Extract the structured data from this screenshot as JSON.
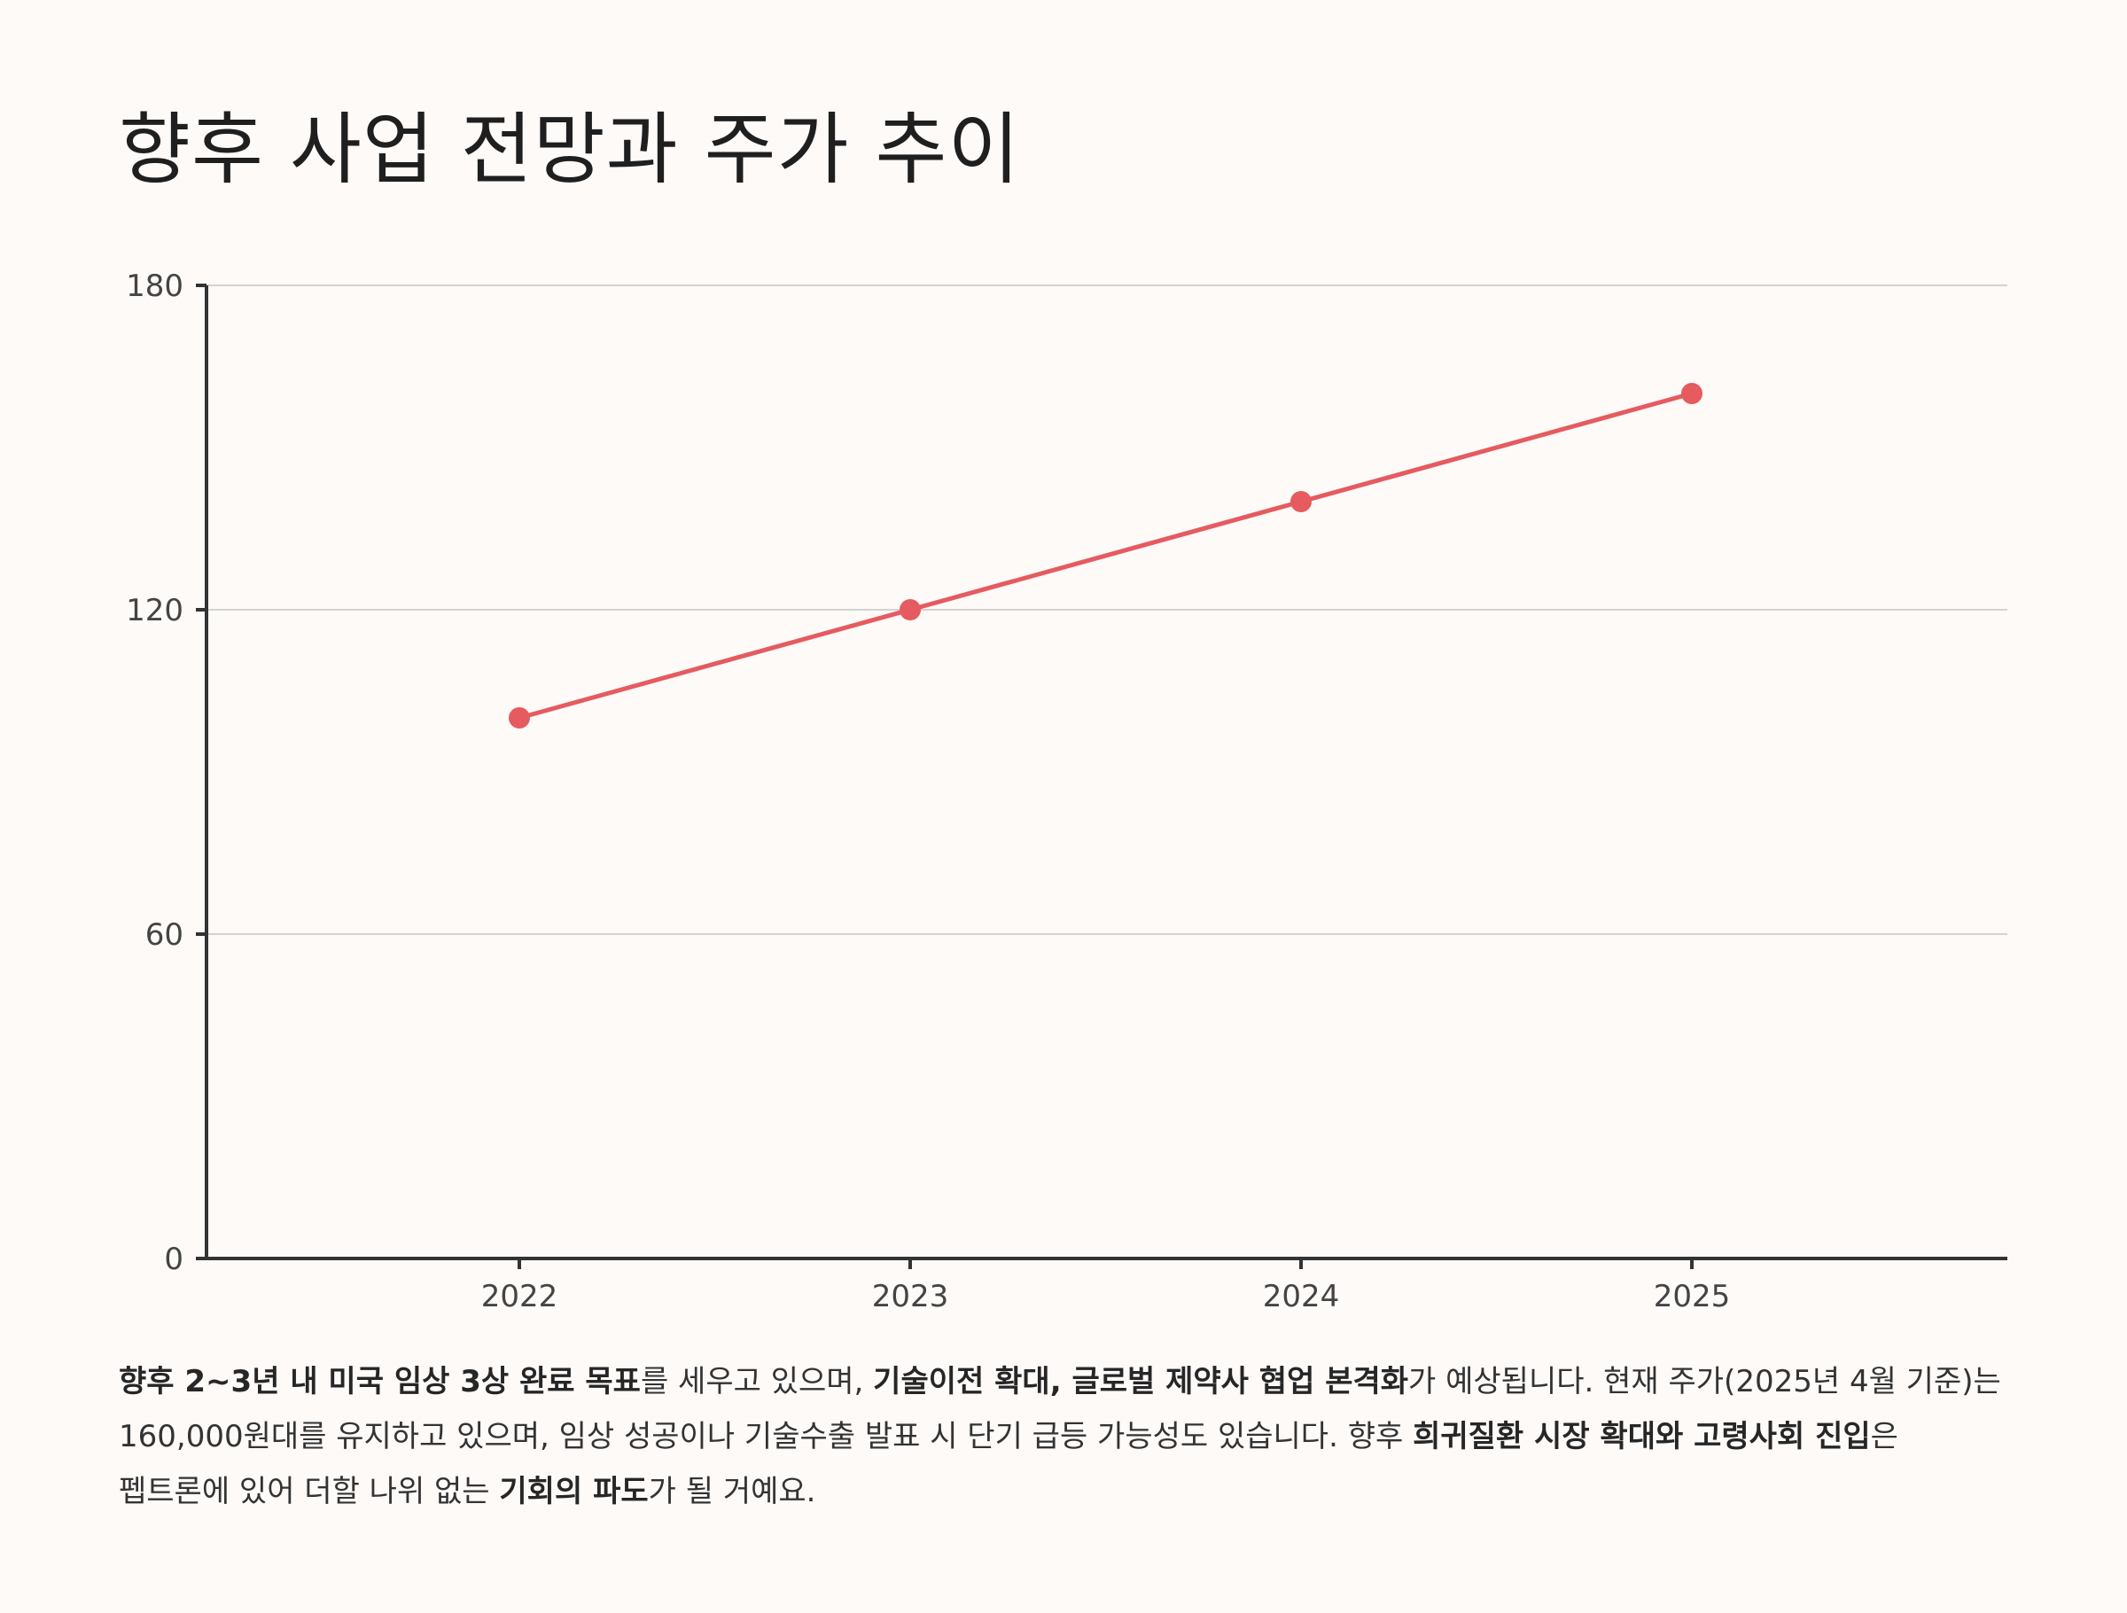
{
  "title": "향후 사업 전망과 주가 추이",
  "colors": {
    "line": "#e55b5f",
    "axis": "#333333",
    "grid": "#d3d3d3",
    "background": "#fdfaf8"
  },
  "chart_data": {
    "type": "line",
    "title": "향후 사업 전망과 주가 추이",
    "xlabel": "",
    "ylabel": "",
    "categories": [
      "2022",
      "2023",
      "2024",
      "2025"
    ],
    "series": [
      {
        "values": [
          100,
          120,
          140,
          160
        ]
      }
    ],
    "ylim": [
      0,
      180
    ],
    "yticks": [
      0,
      60,
      120,
      180
    ],
    "grid": true,
    "legend": "none"
  },
  "description": [
    {
      "text": "향후 2~3년 내 미국 임상 3상 완료 목표",
      "bold": true
    },
    {
      "text": "를 세우고 있으며, ",
      "bold": false
    },
    {
      "text": "기술이전 확대, 글로벌 제약사 협업 본격화",
      "bold": true
    },
    {
      "text": "가 예상됩니다. 현재 주가(2025년 4월 기준)는 160,000원대를 유지하고 있으며, 임상 성공이나 기술수출 발표 시 단기 급등 가능성도 있습니다. 향후 ",
      "bold": false
    },
    {
      "text": "희귀질환 시장 확대와 고령사회 진입",
      "bold": true
    },
    {
      "text": "은 펩트론에 있어 더할 나위 없는 ",
      "bold": false
    },
    {
      "text": "기회의 파도",
      "bold": true
    },
    {
      "text": "가 될 거예요.",
      "bold": false
    }
  ]
}
